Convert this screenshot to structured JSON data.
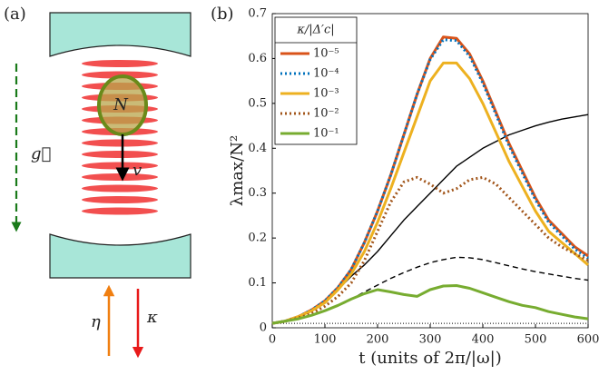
{
  "panel_labels": [
    "(a)",
    "(b)"
  ],
  "diagram": {
    "atoms": "N",
    "velocity": "v",
    "gravity": "g⃗",
    "pump": "η",
    "loss": "κ"
  },
  "chart_data": {
    "type": "line",
    "xlabel": "t (units of 2π/|ω|)",
    "ylabel": "λmax/N²",
    "legend_title": "κ/|Δ′c|",
    "legend": "upper left",
    "xlim": [
      0,
      600
    ],
    "xticks": [
      0,
      100,
      200,
      300,
      400,
      500,
      600
    ],
    "ylim": [
      0,
      0.7
    ],
    "yticks": [
      0,
      0.1,
      0.2,
      0.3,
      0.4,
      0.5,
      0.6,
      0.7
    ],
    "x": [
      0,
      25,
      50,
      75,
      100,
      125,
      150,
      175,
      200,
      225,
      250,
      275,
      300,
      325,
      350,
      375,
      400,
      425,
      450,
      475,
      500,
      525,
      550,
      575,
      600
    ],
    "series": [
      {
        "name": "10⁻⁵",
        "color": "#d95319",
        "style": "solid",
        "values": [
          0.01,
          0.015,
          0.025,
          0.04,
          0.06,
          0.09,
          0.13,
          0.19,
          0.26,
          0.34,
          0.43,
          0.52,
          0.6,
          0.648,
          0.645,
          0.61,
          0.55,
          0.48,
          0.41,
          0.35,
          0.29,
          0.24,
          0.21,
          0.18,
          0.16
        ]
      },
      {
        "name": "10⁻⁴",
        "color": "#0072bd",
        "style": "dotted",
        "values": [
          0.01,
          0.015,
          0.025,
          0.04,
          0.06,
          0.09,
          0.13,
          0.19,
          0.26,
          0.34,
          0.43,
          0.52,
          0.598,
          0.642,
          0.64,
          0.605,
          0.545,
          0.475,
          0.405,
          0.345,
          0.285,
          0.235,
          0.205,
          0.175,
          0.155
        ]
      },
      {
        "name": "10⁻³",
        "color": "#edb120",
        "style": "solid",
        "values": [
          0.01,
          0.015,
          0.025,
          0.038,
          0.056,
          0.085,
          0.12,
          0.17,
          0.235,
          0.31,
          0.39,
          0.47,
          0.55,
          0.59,
          0.59,
          0.555,
          0.5,
          0.435,
          0.37,
          0.315,
          0.26,
          0.215,
          0.19,
          0.165,
          0.14
        ]
      },
      {
        "name": "10⁻²",
        "color": "#a2561b",
        "style": "dotted",
        "values": [
          0.01,
          0.015,
          0.022,
          0.032,
          0.048,
          0.07,
          0.1,
          0.15,
          0.215,
          0.28,
          0.325,
          0.335,
          0.32,
          0.3,
          0.31,
          0.33,
          0.335,
          0.32,
          0.29,
          0.26,
          0.23,
          0.2,
          0.18,
          0.165,
          0.15
        ]
      },
      {
        "name": "10⁻¹",
        "color": "#77ac30",
        "style": "solid",
        "values": [
          0.01,
          0.015,
          0.02,
          0.028,
          0.038,
          0.05,
          0.064,
          0.076,
          0.085,
          0.08,
          0.074,
          0.07,
          0.085,
          0.093,
          0.094,
          0.088,
          0.078,
          0.068,
          0.058,
          0.05,
          0.045,
          0.036,
          0.03,
          0.024,
          0.02
        ]
      },
      {
        "color": "#000000",
        "style": "solid",
        "values": [
          0.01,
          0.015,
          0.024,
          0.038,
          0.058,
          0.085,
          0.115,
          0.14,
          0.17,
          0.205,
          0.24,
          0.27,
          0.3,
          0.33,
          0.36,
          0.38,
          0.4,
          0.415,
          0.43,
          0.44,
          0.45,
          0.458,
          0.465,
          0.47,
          0.475
        ]
      },
      {
        "color": "#000000",
        "style": "dashed",
        "values": [
          0.01,
          0.014,
          0.02,
          0.028,
          0.038,
          0.05,
          0.064,
          0.08,
          0.095,
          0.11,
          0.123,
          0.135,
          0.145,
          0.152,
          0.157,
          0.156,
          0.152,
          0.145,
          0.138,
          0.131,
          0.125,
          0.12,
          0.115,
          0.11,
          0.106
        ]
      },
      {
        "color": "#000000",
        "style": "fine",
        "values": [
          0.01,
          0.01,
          0.01,
          0.01,
          0.01,
          0.01,
          0.01,
          0.01,
          0.01,
          0.01,
          0.01,
          0.01,
          0.01,
          0.01,
          0.01,
          0.01,
          0.01,
          0.01,
          0.01,
          0.01,
          0.01,
          0.01,
          0.01,
          0.01,
          0.01
        ]
      }
    ]
  }
}
